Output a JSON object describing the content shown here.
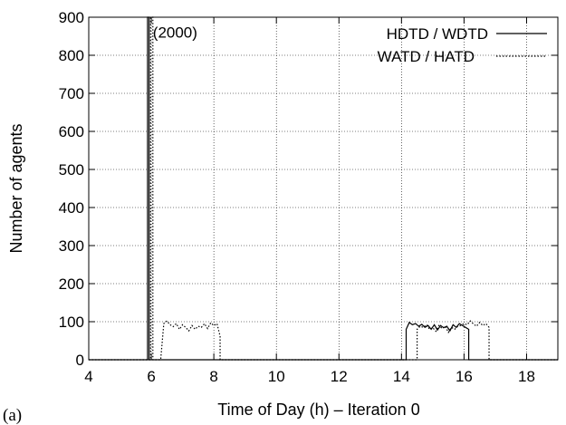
{
  "chart_data": {
    "type": "line",
    "panel_label": "(a)",
    "xlabel": "Time of Day (h) – Iteration 0",
    "ylabel": "Number of agents",
    "xlim": [
      4,
      19
    ],
    "ylim": [
      0,
      900
    ],
    "xticks": [
      4,
      6,
      8,
      10,
      12,
      14,
      16,
      18
    ],
    "xtick_labels": [
      "4",
      "6",
      "8",
      "10",
      "12",
      "14",
      "16",
      "18"
    ],
    "yticks": [
      0,
      100,
      200,
      300,
      400,
      500,
      600,
      700,
      800,
      900
    ],
    "ytick_labels": [
      "0",
      "100",
      "200",
      "300",
      "400",
      "500",
      "600",
      "700",
      "800",
      "900"
    ],
    "grid": true,
    "legend_position": "top-right",
    "annotation": {
      "text": "(2000)",
      "x": 6.05,
      "y": 880
    },
    "series": [
      {
        "name": "HDTD / WDTD",
        "style": "solid",
        "x": [
          4.0,
          5.88,
          5.88,
          5.93,
          5.93,
          14.15,
          14.15,
          14.25,
          14.35,
          14.45,
          14.55,
          14.65,
          14.75,
          14.85,
          14.95,
          15.05,
          15.15,
          15.25,
          15.35,
          15.45,
          15.55,
          15.65,
          15.75,
          15.85,
          15.95,
          16.05,
          16.15,
          16.15,
          19.0
        ],
        "y": [
          0,
          0,
          900,
          900,
          0,
          0,
          80,
          98,
          92,
          95,
          88,
          93,
          85,
          90,
          80,
          92,
          78,
          90,
          84,
          88,
          76,
          92,
          85,
          95,
          90,
          85,
          80,
          0,
          0
        ]
      },
      {
        "name": "WATD / HATD",
        "style": "dotted",
        "x": [
          4.0,
          5.98,
          5.98,
          6.05,
          6.05,
          6.3,
          6.4,
          6.5,
          6.6,
          6.7,
          6.8,
          6.9,
          7.0,
          7.1,
          7.2,
          7.3,
          7.4,
          7.5,
          7.6,
          7.7,
          7.8,
          7.9,
          8.0,
          8.1,
          8.2,
          8.2,
          14.5,
          14.5,
          14.6,
          14.7,
          14.8,
          14.9,
          15.0,
          15.1,
          15.2,
          15.3,
          15.4,
          15.5,
          15.6,
          15.7,
          15.8,
          15.9,
          16.0,
          16.1,
          16.2,
          16.3,
          16.4,
          16.5,
          16.6,
          16.7,
          16.8,
          16.8,
          19.0
        ],
        "y": [
          0,
          0,
          900,
          900,
          0,
          0,
          95,
          102,
          92,
          87,
          95,
          80,
          92,
          85,
          76,
          90,
          80,
          88,
          85,
          95,
          82,
          97,
          90,
          95,
          62,
          0,
          0,
          80,
          88,
          85,
          92,
          80,
          84,
          75,
          90,
          82,
          88,
          72,
          85,
          80,
          88,
          90,
          95,
          92,
          102,
          94,
          88,
          98,
          90,
          95,
          85,
          0,
          0
        ]
      }
    ]
  },
  "legend": {
    "entries": [
      "HDTD / WDTD",
      "WATD / HATD"
    ]
  }
}
